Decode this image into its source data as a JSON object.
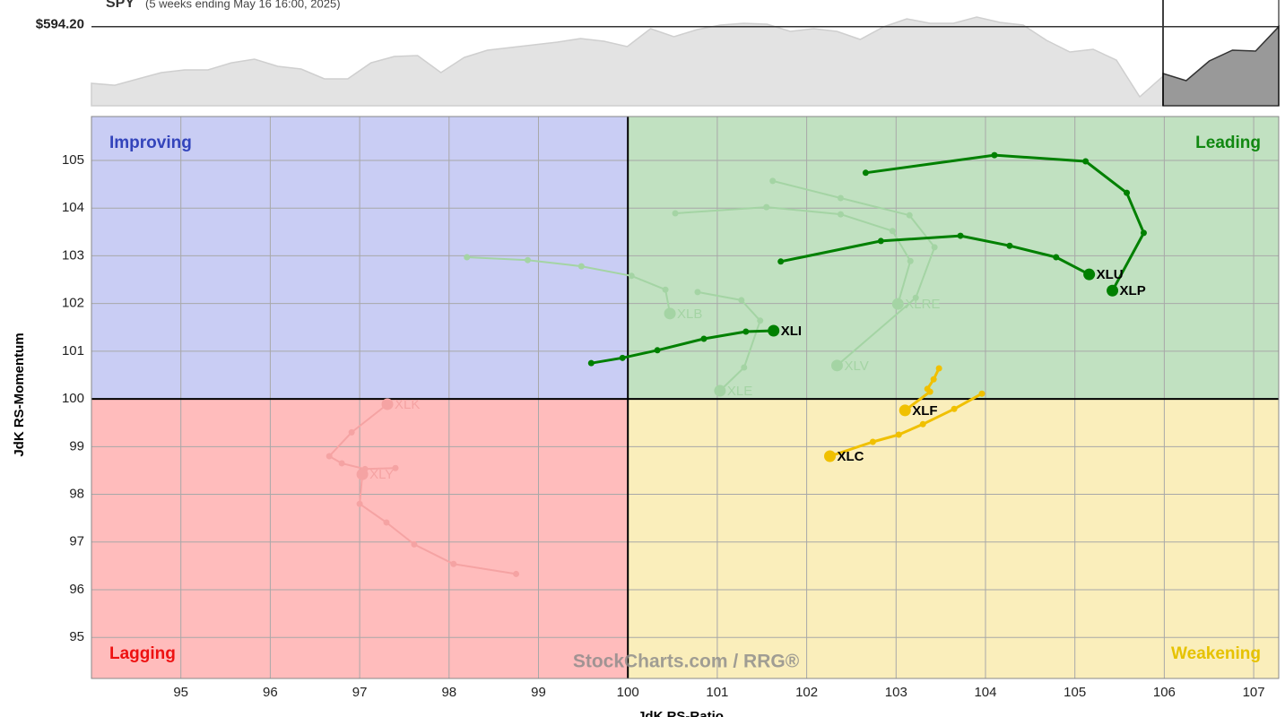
{
  "chart_data": [
    {
      "type": "area",
      "title": "SPY",
      "subtitle": "(5 weeks ending May 16 16:00, 2025)",
      "price_line": {
        "value": 594.2,
        "label": "$594.20"
      },
      "ylim": [
        500,
        626
      ],
      "series": [
        {
          "color": "#e3e3e3",
          "values": [
            526.7,
            524.5,
            532.0,
            539.5,
            542.7,
            542.7,
            551.2,
            555.5,
            547.0,
            543.8,
            532.0,
            532.0,
            551.2,
            558.7,
            559.8,
            539.5,
            557.6,
            566.2,
            569.4,
            572.6,
            575.8,
            580.1,
            576.9,
            570.5,
            591.8,
            582.2,
            590.8,
            596.1,
            598.2,
            597.2,
            588.6,
            591.8,
            588.6,
            579.0,
            594.0,
            603.6,
            598.2,
            598.2,
            605.7,
            599.3,
            596.1,
            577.9,
            564.1,
            567.3,
            554.4,
            510.7,
            535.2
          ]
        },
        {
          "color": "#999999",
          "values": [
            538.4,
            529.9,
            553.4,
            566.2,
            565.1,
            594.2
          ]
        }
      ]
    },
    {
      "type": "rrg",
      "x_label": "JdK RS-Ratio",
      "y_label": "JdK RS-Momentum",
      "xlim": [
        94,
        107.28
      ],
      "ylim": [
        94.14,
        105.92
      ],
      "xticks": [
        95,
        96,
        97,
        98,
        99,
        100,
        101,
        102,
        103,
        104,
        105,
        106,
        107
      ],
      "yticks": [
        95,
        96,
        97,
        98,
        99,
        100,
        101,
        102,
        103,
        104,
        105
      ],
      "grid": true,
      "center": 100,
      "quadrants": [
        {
          "label": "Improving",
          "bg": "#c9cdf4",
          "color": "#3344bb",
          "corner": "top-left"
        },
        {
          "label": "Leading",
          "bg": "#c1e1c1",
          "color": "#118811",
          "corner": "top-right"
        },
        {
          "label": "Lagging",
          "bg": "#ffbcbc",
          "color": "#ee1111",
          "corner": "bottom-left"
        },
        {
          "label": "Weakening",
          "bg": "#faeebb",
          "color": "#e6c200",
          "corner": "bottom-right"
        }
      ],
      "watermark": "StockCharts.com / RRG®",
      "series": [
        {
          "name": "XLB",
          "color": "#a4d4a4",
          "faded": true,
          "x": [
            98.2,
            98.88,
            99.48,
            100.04,
            100.42,
            100.47
          ],
          "y": [
            102.97,
            102.91,
            102.78,
            102.58,
            102.29,
            101.79
          ]
        },
        {
          "name": "XLRE",
          "color": "#a4d4a4",
          "faded": true,
          "x": [
            100.53,
            101.55,
            102.38,
            102.96,
            103.16,
            103.02
          ],
          "y": [
            103.89,
            104.02,
            103.87,
            103.52,
            102.89,
            101.99
          ]
        },
        {
          "name": "XLV",
          "color": "#a4d4a4",
          "faded": true,
          "x": [
            101.62,
            102.38,
            103.15,
            103.43,
            103.22,
            102.34
          ],
          "y": [
            104.57,
            104.21,
            103.85,
            103.18,
            102.12,
            100.7
          ]
        },
        {
          "name": "XLE",
          "color": "#a4d4a4",
          "faded": true,
          "x": [
            100.78,
            101.27,
            101.48,
            101.3,
            101.03
          ],
          "y": [
            102.24,
            102.07,
            101.64,
            100.66,
            100.17
          ]
        },
        {
          "name": "XLK",
          "color": "#f5a3a3",
          "faded": true,
          "x": [
            97.4,
            97.06,
            96.8,
            96.66,
            96.91,
            97.31
          ],
          "y": [
            98.55,
            98.53,
            98.65,
            98.8,
            99.3,
            99.89
          ]
        },
        {
          "name": "XLY",
          "color": "#f5a3a3",
          "faded": true,
          "x": [
            98.75,
            98.05,
            97.61,
            97.3,
            97.0,
            97.03
          ],
          "y": [
            96.33,
            96.54,
            96.95,
            97.41,
            97.8,
            98.42
          ]
        },
        {
          "name": "XLP",
          "color": "#008000",
          "faded": false,
          "x": [
            102.66,
            104.1,
            105.12,
            105.58,
            105.77,
            105.42
          ],
          "y": [
            104.74,
            105.11,
            104.98,
            104.32,
            103.48,
            102.27
          ]
        },
        {
          "name": "XLU",
          "color": "#008000",
          "faded": false,
          "x": [
            101.71,
            102.83,
            103.72,
            104.27,
            104.79,
            105.16
          ],
          "y": [
            102.88,
            103.31,
            103.42,
            103.21,
            102.97,
            102.61
          ]
        },
        {
          "name": "XLI",
          "color": "#008000",
          "faded": false,
          "x": [
            99.59,
            99.94,
            100.33,
            100.85,
            101.32,
            101.63
          ],
          "y": [
            100.75,
            100.86,
            101.02,
            101.26,
            101.41,
            101.43
          ]
        },
        {
          "name": "XLF",
          "color": "#f0c000",
          "faded": false,
          "x": [
            103.48,
            103.42,
            103.35,
            103.38,
            103.1
          ],
          "y": [
            100.64,
            100.41,
            100.21,
            100.15,
            99.76
          ]
        },
        {
          "name": "XLC",
          "color": "#f0c000",
          "faded": false,
          "x": [
            103.96,
            103.65,
            103.3,
            103.03,
            102.74,
            102.26
          ],
          "y": [
            100.11,
            99.79,
            99.47,
            99.25,
            99.1,
            98.8
          ]
        }
      ]
    }
  ]
}
